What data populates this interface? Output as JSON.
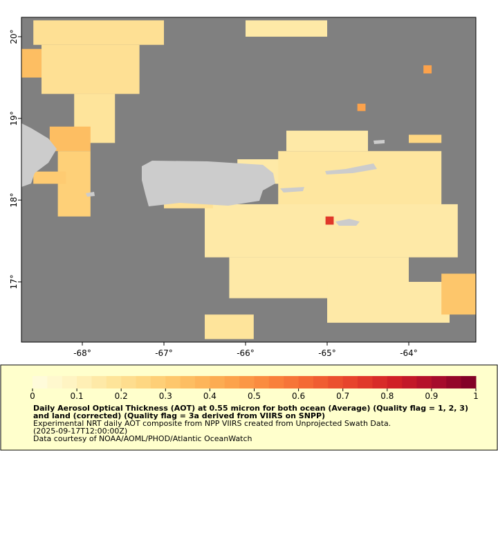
{
  "map": {
    "xlim": [
      -68.746,
      -63.178
    ],
    "ylim": [
      16.263,
      20.237
    ],
    "xticks": [
      {
        "value": -68,
        "label": "-68°"
      },
      {
        "value": -67,
        "label": "-67°"
      },
      {
        "value": -66,
        "label": "-66°"
      },
      {
        "value": -65,
        "label": "-65°"
      },
      {
        "value": -64,
        "label": "-64°"
      }
    ],
    "yticks": [
      {
        "value": 17,
        "label": "17°"
      },
      {
        "value": 18,
        "label": "18°"
      },
      {
        "value": 19,
        "label": "19°"
      },
      {
        "value": 20,
        "label": "20°"
      }
    ],
    "patches": [
      {
        "lon": [
          -68.6,
          -67.0
        ],
        "lat": [
          19.9,
          20.2
        ],
        "value": 0.2
      },
      {
        "lon": [
          -68.75,
          -68.5
        ],
        "lat": [
          19.5,
          19.85
        ],
        "value": 0.35
      },
      {
        "lon": [
          -68.5,
          -67.3
        ],
        "lat": [
          19.3,
          19.9
        ],
        "value": 0.2
      },
      {
        "lon": [
          -68.1,
          -67.6
        ],
        "lat": [
          18.7,
          19.3
        ],
        "value": 0.18
      },
      {
        "lon": [
          -68.4,
          -67.9
        ],
        "lat": [
          18.6,
          18.9
        ],
        "value": 0.35
      },
      {
        "lon": [
          -68.3,
          -67.9
        ],
        "lat": [
          17.8,
          18.6
        ],
        "value": 0.28
      },
      {
        "lon": [
          -68.6,
          -68.2
        ],
        "lat": [
          18.2,
          18.35
        ],
        "value": 0.3
      },
      {
        "lon": [
          -66.0,
          -65.0
        ],
        "lat": [
          20.0,
          20.2
        ],
        "value": 0.15
      },
      {
        "lon": [
          -63.82,
          -63.72
        ],
        "lat": [
          19.55,
          19.65
        ],
        "value": 0.45
      },
      {
        "lon": [
          -64.63,
          -64.53
        ],
        "lat": [
          19.09,
          19.18
        ],
        "value": 0.45
      },
      {
        "lon": [
          -66.1,
          -65.5
        ],
        "lat": [
          18.2,
          18.5
        ],
        "value": 0.15
      },
      {
        "lon": [
          -65.6,
          -63.6
        ],
        "lat": [
          17.9,
          18.6
        ],
        "value": 0.17
      },
      {
        "lon": [
          -66.5,
          -63.4
        ],
        "lat": [
          17.3,
          17.95
        ],
        "value": 0.15
      },
      {
        "lon": [
          -65.5,
          -64.5
        ],
        "lat": [
          18.6,
          18.85
        ],
        "value": 0.15
      },
      {
        "lon": [
          -66.2,
          -64.0
        ],
        "lat": [
          16.8,
          17.3
        ],
        "value": 0.15
      },
      {
        "lon": [
          -65.0,
          -63.5
        ],
        "lat": [
          16.5,
          17.0
        ],
        "value": 0.15
      },
      {
        "lon": [
          -63.6,
          -63.18
        ],
        "lat": [
          16.6,
          17.1
        ],
        "value": 0.32
      },
      {
        "lon": [
          -67.0,
          -66.4
        ],
        "lat": [
          17.9,
          18.0
        ],
        "value": 0.2
      },
      {
        "lon": [
          -66.5,
          -65.9
        ],
        "lat": [
          16.3,
          16.6
        ],
        "value": 0.18
      },
      {
        "lon": [
          -64.0,
          -63.6
        ],
        "lat": [
          18.7,
          18.8
        ],
        "value": 0.25
      },
      {
        "lon": [
          -65.02,
          -64.92
        ],
        "lat": [
          17.7,
          17.8
        ],
        "value": 0.75
      }
    ]
  },
  "colorbar": {
    "range": [
      0,
      1
    ],
    "steps": 30,
    "colors": [
      "#fffde0",
      "#fff3c0",
      "#fee49a",
      "#fed27a",
      "#fdbb5e",
      "#fca14a",
      "#f9823c",
      "#f26232",
      "#e5402b",
      "#d01f26",
      "#aa0d2c",
      "#7a0026"
    ],
    "ticks": [
      0,
      0.1,
      0.2,
      0.3,
      0.4,
      0.5,
      0.6,
      0.7,
      0.8,
      0.9,
      1
    ]
  },
  "legend": {
    "title": "Daily Aerosol Optical Thickness (AOT) at 0.55 micron for both ocean (Average) (Quality flag = 1, 2, 3) and land (corrected) (Quality flag = 3a derived from VIIRS on SNPP)",
    "lines": [
      "Experimental NRT daily AOT composite from NPP VIIRS created from Unprojected Swath Data.",
      "(2025-09-17T12:00:00Z)",
      "Data courtesy of NOAA/AOML/PHOD/Atlantic OceanWatch"
    ]
  }
}
